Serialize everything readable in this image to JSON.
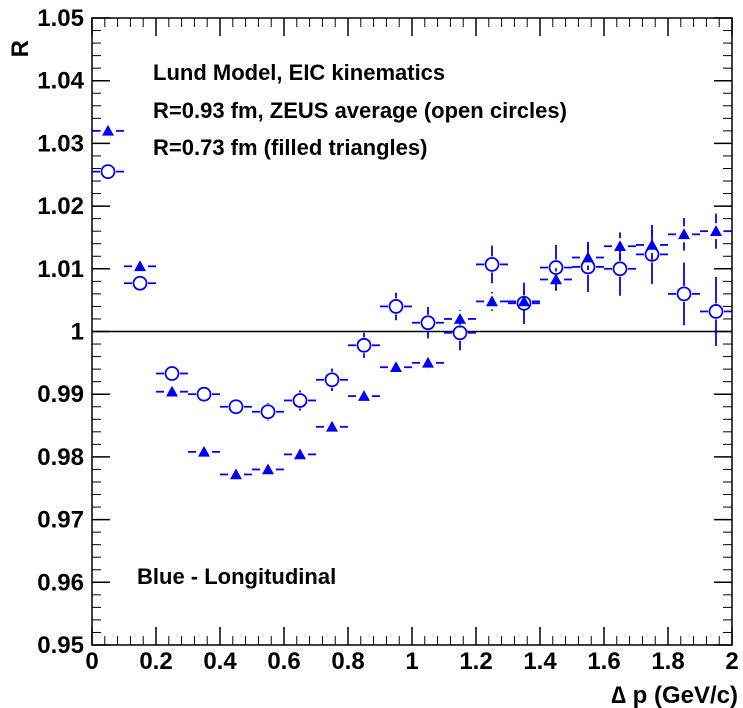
{
  "chart_data": {
    "type": "scatter",
    "xlabel": "∆ p (GeV/c)",
    "ylabel": "R",
    "xlim": [
      0,
      2
    ],
    "ylim": [
      0.95,
      1.05
    ],
    "x_ticks": [
      "0",
      "0.2",
      "0.4",
      "0.6",
      "0.8",
      "1",
      "1.2",
      "1.4",
      "1.6",
      "1.8",
      "2"
    ],
    "y_ticks": [
      "0.95",
      "0.96",
      "0.97",
      "0.98",
      "0.99",
      "1",
      "1.01",
      "1.02",
      "1.03",
      "1.04",
      "1.05"
    ],
    "reference_line": 1,
    "annotations": [
      "Lund Model, EIC kinematics",
      "R=0.93 fm, ZEUS average (open circles)",
      "R=0.73 fm (filled triangles)",
      "Blue - Longitudinal"
    ],
    "color": "#0000ff",
    "series": [
      {
        "marker": "open-circle",
        "x": [
          0.05,
          0.15,
          0.25,
          0.35,
          0.45,
          0.55,
          0.65,
          0.75,
          0.85,
          0.95,
          1.05,
          1.15,
          1.25,
          1.35,
          1.45,
          1.55,
          1.65,
          1.75,
          1.85,
          1.95
        ],
        "y": [
          1.0255,
          1.0077,
          0.9933,
          0.99,
          0.988,
          0.9872,
          0.989,
          0.9923,
          0.9978,
          1.004,
          1.0014,
          0.9998,
          1.0107,
          1.0045,
          1.0102,
          1.0103,
          1.01,
          1.0123,
          1.006,
          1.0032
        ],
        "err": [
          0.0003,
          0.0005,
          0.0008,
          0.001,
          0.0012,
          0.0014,
          0.0016,
          0.0018,
          0.002,
          0.0022,
          0.0025,
          0.0028,
          0.003,
          0.0033,
          0.0036,
          0.004,
          0.0043,
          0.0047,
          0.005,
          0.0055
        ]
      },
      {
        "marker": "filled-triangle",
        "x": [
          0.05,
          0.15,
          0.25,
          0.35,
          0.45,
          0.55,
          0.65,
          0.75,
          0.85,
          0.95,
          1.05,
          1.15,
          1.25,
          1.35,
          1.45,
          1.55,
          1.65,
          1.75,
          1.85,
          1.95
        ],
        "y": [
          1.032,
          1.0104,
          0.9904,
          0.9808,
          0.9772,
          0.978,
          0.9804,
          0.9848,
          0.9897,
          0.9943,
          0.995,
          1.002,
          1.0048,
          1.0048,
          1.0083,
          1.0118,
          1.0136,
          1.0138,
          1.0155,
          1.016
        ],
        "err": [
          0.0003,
          0.0004,
          0.0005,
          0.0006,
          0.0007,
          0.0008,
          0.0009,
          0.001,
          0.0011,
          0.0012,
          0.0013,
          0.0014,
          0.0015,
          0.0016,
          0.0018,
          0.002,
          0.0022,
          0.0024,
          0.0026,
          0.0028
        ]
      }
    ]
  }
}
